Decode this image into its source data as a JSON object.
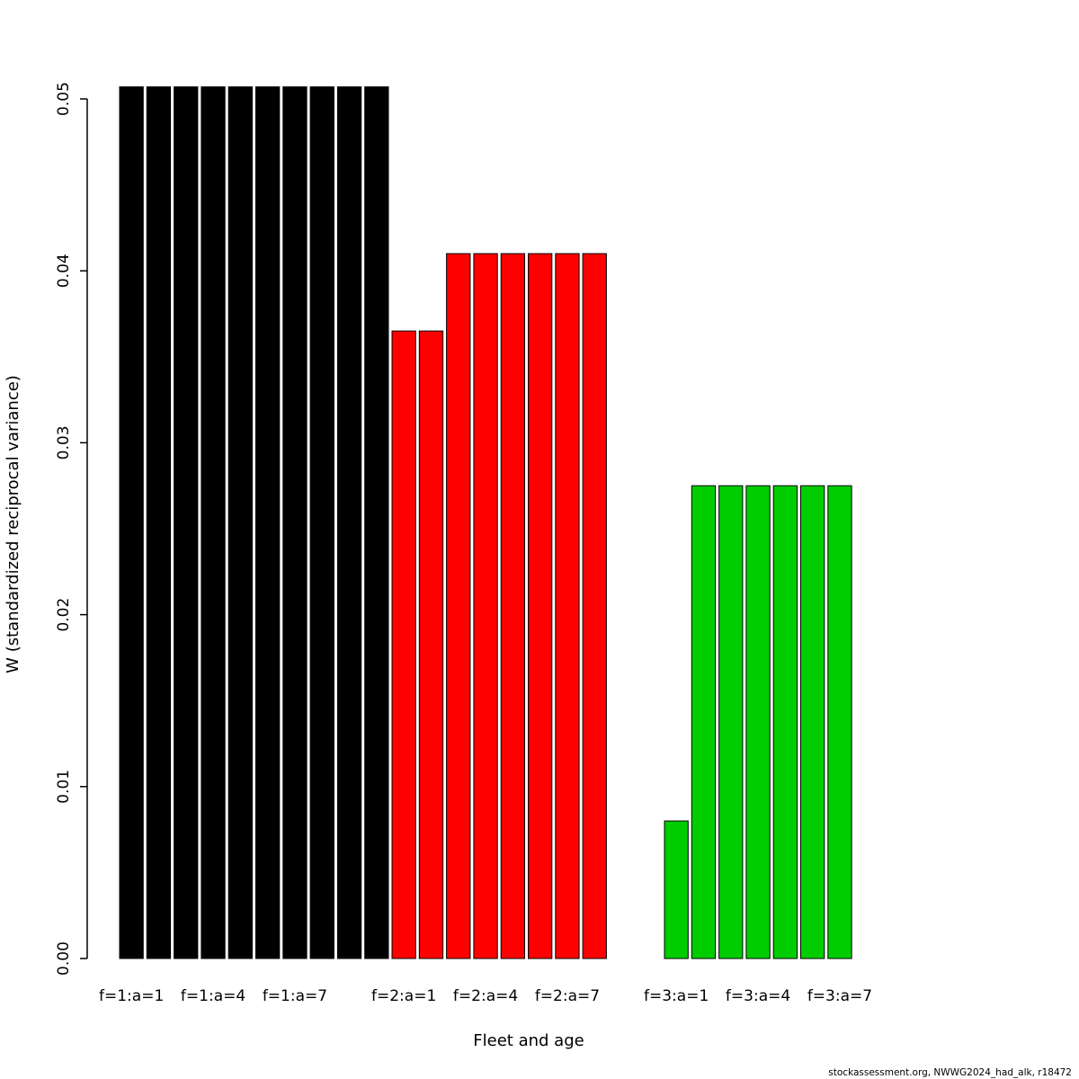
{
  "footer": {
    "text": "stockassessment.org, NWWG2024_had_alk, r18472"
  },
  "chart_data": {
    "type": "bar",
    "title": "",
    "xlabel": "Fleet and age",
    "ylabel": "W (standardized reciprocal variance)",
    "ylim": [
      0,
      0.0507
    ],
    "yticks": [
      "0.00",
      "0.01",
      "0.02",
      "0.03",
      "0.04",
      "0.05"
    ],
    "grid": false,
    "legend": "none",
    "bar_colors": {
      "fleet1": "#000000",
      "fleet2": "#FF0000",
      "fleet3": "#00CD00"
    },
    "bars": [
      {
        "fleet": 1,
        "age": 1,
        "value": 0.0507,
        "color": "#000000",
        "tick": true,
        "label": "f=1:a=1"
      },
      {
        "fleet": 1,
        "age": 2,
        "value": 0.0507,
        "color": "#000000",
        "tick": false
      },
      {
        "fleet": 1,
        "age": 3,
        "value": 0.0507,
        "color": "#000000",
        "tick": false
      },
      {
        "fleet": 1,
        "age": 4,
        "value": 0.0507,
        "color": "#000000",
        "tick": true,
        "label": "f=1:a=4"
      },
      {
        "fleet": 1,
        "age": 5,
        "value": 0.0507,
        "color": "#000000",
        "tick": false
      },
      {
        "fleet": 1,
        "age": 6,
        "value": 0.0507,
        "color": "#000000",
        "tick": false
      },
      {
        "fleet": 1,
        "age": 7,
        "value": 0.0507,
        "color": "#000000",
        "tick": true,
        "label": "f=1:a=7"
      },
      {
        "fleet": 1,
        "age": 8,
        "value": 0.0507,
        "color": "#000000",
        "tick": false
      },
      {
        "fleet": 1,
        "age": 9,
        "value": 0.0507,
        "color": "#000000",
        "tick": false
      },
      {
        "fleet": 1,
        "age": 10,
        "value": 0.0507,
        "color": "#000000",
        "tick": false
      },
      {
        "fleet": 2,
        "age": 1,
        "value": 0.0365,
        "color": "#FF0000",
        "tick": true,
        "label": "f=2:a=1"
      },
      {
        "fleet": 2,
        "age": 2,
        "value": 0.0365,
        "color": "#FF0000",
        "tick": false
      },
      {
        "fleet": 2,
        "age": 3,
        "value": 0.041,
        "color": "#FF0000",
        "tick": false
      },
      {
        "fleet": 2,
        "age": 4,
        "value": 0.041,
        "color": "#FF0000",
        "tick": true,
        "label": "f=2:a=4"
      },
      {
        "fleet": 2,
        "age": 5,
        "value": 0.041,
        "color": "#FF0000",
        "tick": false
      },
      {
        "fleet": 2,
        "age": 6,
        "value": 0.041,
        "color": "#FF0000",
        "tick": false
      },
      {
        "fleet": 2,
        "age": 7,
        "value": 0.041,
        "color": "#FF0000",
        "tick": true,
        "label": "f=2:a=7"
      },
      {
        "fleet": 2,
        "age": 8,
        "value": 0.041,
        "color": "#FF0000",
        "tick": false
      },
      {
        "fleet": 2,
        "age": 9,
        "value": 0,
        "color": "#FF0000",
        "tick": false
      },
      {
        "fleet": 2,
        "age": 10,
        "value": 0,
        "color": "#FF0000",
        "tick": false
      },
      {
        "fleet": 3,
        "age": 1,
        "value": 0.008,
        "color": "#00CD00",
        "tick": true,
        "label": "f=3:a=1"
      },
      {
        "fleet": 3,
        "age": 2,
        "value": 0.0275,
        "color": "#00CD00",
        "tick": false
      },
      {
        "fleet": 3,
        "age": 3,
        "value": 0.0275,
        "color": "#00CD00",
        "tick": false
      },
      {
        "fleet": 3,
        "age": 4,
        "value": 0.0275,
        "color": "#00CD00",
        "tick": true,
        "label": "f=3:a=4"
      },
      {
        "fleet": 3,
        "age": 5,
        "value": 0.0275,
        "color": "#00CD00",
        "tick": false
      },
      {
        "fleet": 3,
        "age": 6,
        "value": 0.0275,
        "color": "#00CD00",
        "tick": false
      },
      {
        "fleet": 3,
        "age": 7,
        "value": 0.0275,
        "color": "#00CD00",
        "tick": true,
        "label": "f=3:a=7"
      }
    ]
  }
}
